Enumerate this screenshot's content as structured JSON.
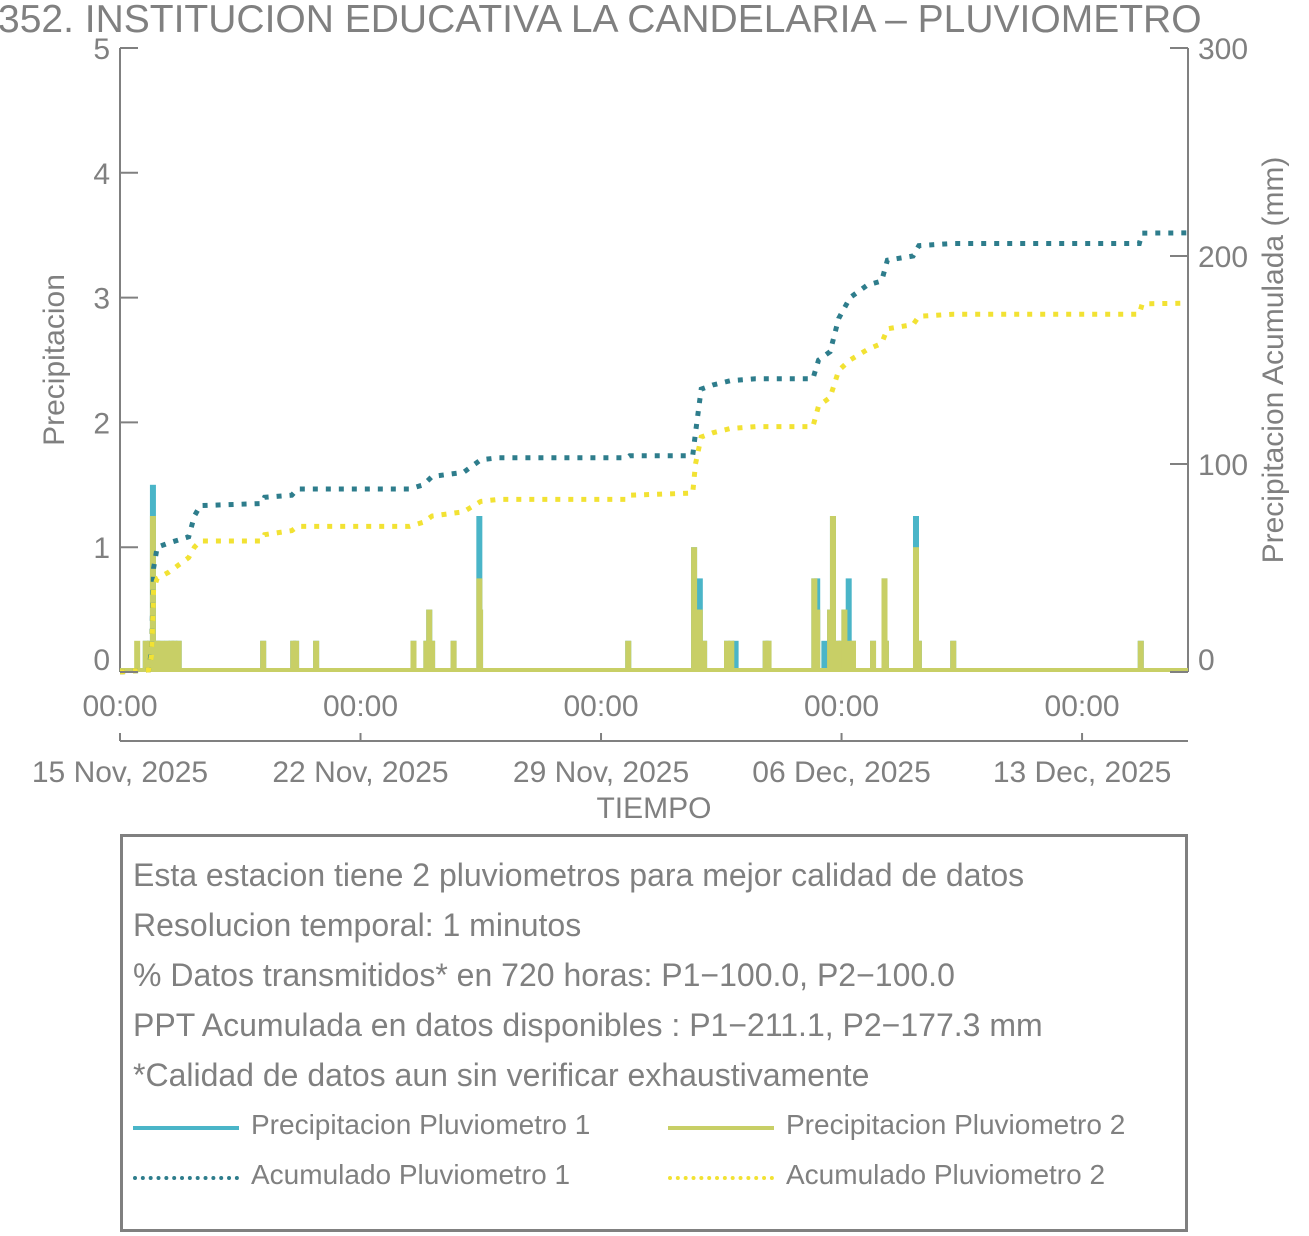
{
  "chart_data": {
    "type": "bar+line",
    "title": "352. INSTITUCION EDUCATIVA LA CANDELARIA – PLUVIOMETRO",
    "xlabel": "TIEMPO",
    "ylabel_left": "Precipitacion",
    "ylabel_right": "Precipitacion Acumulada (mm)",
    "ylim_left": [
      0,
      5
    ],
    "ylim_right": [
      0,
      300
    ],
    "yticks_left": [
      "0",
      "1",
      "2",
      "3",
      "4",
      "5"
    ],
    "yticks_right": [
      "0",
      "100",
      "200",
      "300"
    ],
    "x_range": [
      "2025-11-15T00:00",
      "2025-12-16T02:00"
    ],
    "x_ticks": [
      {
        "date": "2025-11-15",
        "time": "00:00",
        "label": "15 Nov, 2025"
      },
      {
        "date": "2025-11-22",
        "time": "00:00",
        "label": "22 Nov, 2025"
      },
      {
        "date": "2025-11-29",
        "time": "00:00",
        "label": "29 Nov, 2025"
      },
      {
        "date": "2025-12-06",
        "time": "00:00",
        "label": "06 Dec, 2025"
      },
      {
        "date": "2025-12-13",
        "time": "00:00",
        "label": "13 Dec, 2025"
      }
    ],
    "series": [
      {
        "name": "Precipitacion Pluviometro 1",
        "kind": "bar",
        "axis": "left",
        "color": "#4ab5c8",
        "points": [
          [
            "2025-11-15T18:00",
            0.25
          ],
          [
            "2025-11-15T21:00",
            0.25
          ],
          [
            "2025-11-15T23:00",
            1.5
          ],
          [
            "2025-11-16T01:00",
            0.25
          ],
          [
            "2025-11-16T02:00",
            0.25
          ],
          [
            "2025-11-16T05:00",
            0.25
          ],
          [
            "2025-11-16T09:00",
            0.25
          ],
          [
            "2025-11-16T12:00",
            0.25
          ],
          [
            "2025-11-16T14:00",
            0.25
          ],
          [
            "2025-11-16T17:00",
            0.25
          ],
          [
            "2025-11-19T04:00",
            0.25
          ],
          [
            "2025-11-20T01:00",
            0.25
          ],
          [
            "2025-11-20T03:00",
            0.25
          ],
          [
            "2025-11-20T17:00",
            0.25
          ],
          [
            "2025-11-23T13:00",
            0.25
          ],
          [
            "2025-11-23T22:00",
            0.25
          ],
          [
            "2025-11-24T00:00",
            0.5
          ],
          [
            "2025-11-24T02:00",
            0.25
          ],
          [
            "2025-11-24T17:00",
            0.25
          ],
          [
            "2025-11-25T11:00",
            1.25
          ],
          [
            "2025-11-25T11:30",
            0.5
          ],
          [
            "2025-11-29T19:00",
            0.25
          ],
          [
            "2025-12-01T17:00",
            1.0
          ],
          [
            "2025-12-01T19:00",
            0.5
          ],
          [
            "2025-12-01T21:00",
            0.75
          ],
          [
            "2025-12-02T00:00",
            0.25
          ],
          [
            "2025-12-02T16:00",
            0.25
          ],
          [
            "2025-12-02T19:00",
            0.25
          ],
          [
            "2025-12-02T22:00",
            0.25
          ],
          [
            "2025-12-03T19:00",
            0.25
          ],
          [
            "2025-12-03T21:00",
            0.25
          ],
          [
            "2025-12-05T05:00",
            0.75
          ],
          [
            "2025-12-05T07:00",
            0.75
          ],
          [
            "2025-12-05T12:00",
            0.25
          ],
          [
            "2025-12-05T16:00",
            0.5
          ],
          [
            "2025-12-05T18:00",
            1.25
          ],
          [
            "2025-12-05T21:00",
            0.25
          ],
          [
            "2025-12-06T00:00",
            0.25
          ],
          [
            "2025-12-06T02:00",
            0.5
          ],
          [
            "2025-12-06T05:00",
            0.75
          ],
          [
            "2025-12-06T08:00",
            0.25
          ],
          [
            "2025-12-06T22:00",
            0.25
          ],
          [
            "2025-12-07T06:00",
            0.75
          ],
          [
            "2025-12-07T07:00",
            0.25
          ],
          [
            "2025-12-08T04:00",
            1.25
          ],
          [
            "2025-12-08T06:00",
            0.25
          ],
          [
            "2025-12-09T06:00",
            0.25
          ],
          [
            "2025-12-14T17:00",
            0.25
          ]
        ]
      },
      {
        "name": "Precipitacion Pluviometro 2",
        "kind": "bar",
        "axis": "left",
        "color": "#c8cf66",
        "points": [
          [
            "2025-11-15T12:00",
            0.25
          ],
          [
            "2025-11-15T18:00",
            0.25
          ],
          [
            "2025-11-15T21:00",
            0.25
          ],
          [
            "2025-11-15T23:00",
            1.25
          ],
          [
            "2025-11-16T01:00",
            0.25
          ],
          [
            "2025-11-16T02:00",
            0.25
          ],
          [
            "2025-11-16T05:00",
            0.25
          ],
          [
            "2025-11-16T09:00",
            0.25
          ],
          [
            "2025-11-16T12:00",
            0.25
          ],
          [
            "2025-11-16T14:00",
            0.25
          ],
          [
            "2025-11-16T17:00",
            0.25
          ],
          [
            "2025-11-19T04:00",
            0.25
          ],
          [
            "2025-11-20T01:00",
            0.25
          ],
          [
            "2025-11-20T03:00",
            0.25
          ],
          [
            "2025-11-20T17:00",
            0.25
          ],
          [
            "2025-11-23T13:00",
            0.25
          ],
          [
            "2025-11-23T22:00",
            0.25
          ],
          [
            "2025-11-24T00:00",
            0.5
          ],
          [
            "2025-11-24T02:00",
            0.25
          ],
          [
            "2025-11-24T17:00",
            0.25
          ],
          [
            "2025-11-25T11:00",
            0.75
          ],
          [
            "2025-11-25T11:30",
            0.5
          ],
          [
            "2025-11-29T19:00",
            0.25
          ],
          [
            "2025-12-01T17:00",
            1.0
          ],
          [
            "2025-12-01T19:00",
            0.5
          ],
          [
            "2025-12-01T21:00",
            0.5
          ],
          [
            "2025-12-02T00:00",
            0.25
          ],
          [
            "2025-12-02T16:00",
            0.25
          ],
          [
            "2025-12-02T19:00",
            0.25
          ],
          [
            "2025-12-03T19:00",
            0.25
          ],
          [
            "2025-12-03T21:00",
            0.25
          ],
          [
            "2025-12-05T05:00",
            0.75
          ],
          [
            "2025-12-05T07:00",
            0.5
          ],
          [
            "2025-12-05T16:00",
            0.5
          ],
          [
            "2025-12-05T18:00",
            1.25
          ],
          [
            "2025-12-05T21:00",
            0.25
          ],
          [
            "2025-12-06T00:00",
            0.25
          ],
          [
            "2025-12-06T02:00",
            0.5
          ],
          [
            "2025-12-06T05:00",
            0.25
          ],
          [
            "2025-12-06T08:00",
            0.25
          ],
          [
            "2025-12-06T22:00",
            0.25
          ],
          [
            "2025-12-07T06:00",
            0.75
          ],
          [
            "2025-12-07T07:00",
            0.25
          ],
          [
            "2025-12-08T04:00",
            1.0
          ],
          [
            "2025-12-08T06:00",
            0.25
          ],
          [
            "2025-12-09T06:00",
            0.25
          ],
          [
            "2025-12-14T17:00",
            0.25
          ]
        ]
      },
      {
        "name": "Acumulado Pluviometro 1",
        "kind": "line",
        "style": "dotted",
        "axis": "right",
        "color": "#2e7d8c",
        "points": [
          [
            "2025-11-15T00:00",
            0
          ],
          [
            "2025-11-15T20:00",
            1
          ],
          [
            "2025-11-15T22:00",
            10
          ],
          [
            "2025-11-15T23:30",
            50
          ],
          [
            "2025-11-16T02:00",
            60
          ],
          [
            "2025-11-16T10:00",
            62
          ],
          [
            "2025-11-17T00:00",
            65
          ],
          [
            "2025-11-17T04:00",
            75
          ],
          [
            "2025-11-17T08:00",
            80
          ],
          [
            "2025-11-19T03:00",
            81
          ],
          [
            "2025-11-19T05:00",
            84
          ],
          [
            "2025-11-20T00:00",
            85
          ],
          [
            "2025-11-20T04:00",
            88
          ],
          [
            "2025-11-23T10:00",
            88
          ],
          [
            "2025-11-23T20:00",
            90
          ],
          [
            "2025-11-24T02:00",
            94
          ],
          [
            "2025-11-25T00:00",
            96
          ],
          [
            "2025-11-25T12:00",
            102
          ],
          [
            "2025-11-26T00:00",
            103
          ],
          [
            "2025-11-29T18:00",
            103
          ],
          [
            "2025-11-29T20:00",
            104
          ],
          [
            "2025-12-01T16:00",
            104
          ],
          [
            "2025-12-01T18:00",
            115
          ],
          [
            "2025-12-01T22:00",
            136
          ],
          [
            "2025-12-02T06:00",
            138
          ],
          [
            "2025-12-02T18:00",
            140
          ],
          [
            "2025-12-03T12:00",
            141
          ],
          [
            "2025-12-05T04:00",
            141
          ],
          [
            "2025-12-05T08:00",
            150
          ],
          [
            "2025-12-05T16:00",
            154
          ],
          [
            "2025-12-05T22:00",
            170
          ],
          [
            "2025-12-06T06:00",
            180
          ],
          [
            "2025-12-06T18:00",
            186
          ],
          [
            "2025-12-07T04:00",
            188
          ],
          [
            "2025-12-07T08:00",
            198
          ],
          [
            "2025-12-08T02:00",
            200
          ],
          [
            "2025-12-08T06:00",
            205
          ],
          [
            "2025-12-09T06:00",
            206
          ],
          [
            "2025-12-14T16:00",
            206
          ],
          [
            "2025-12-14T18:00",
            211
          ],
          [
            "2025-12-16T02:00",
            211.1
          ]
        ]
      },
      {
        "name": "Acumulado Pluviometro 2",
        "kind": "line",
        "style": "dotted",
        "axis": "right",
        "color": "#f2e233",
        "points": [
          [
            "2025-11-15T00:00",
            0
          ],
          [
            "2025-11-15T20:00",
            1
          ],
          [
            "2025-11-15T22:00",
            8
          ],
          [
            "2025-11-15T23:30",
            40
          ],
          [
            "2025-11-16T02:00",
            45
          ],
          [
            "2025-11-16T10:00",
            48
          ],
          [
            "2025-11-17T00:00",
            55
          ],
          [
            "2025-11-17T04:00",
            60
          ],
          [
            "2025-11-17T08:00",
            63
          ],
          [
            "2025-11-19T03:00",
            63
          ],
          [
            "2025-11-19T05:00",
            66
          ],
          [
            "2025-11-20T00:00",
            68
          ],
          [
            "2025-11-20T04:00",
            70
          ],
          [
            "2025-11-23T10:00",
            70
          ],
          [
            "2025-11-23T20:00",
            72
          ],
          [
            "2025-11-24T02:00",
            75
          ],
          [
            "2025-11-25T00:00",
            77
          ],
          [
            "2025-11-25T12:00",
            82
          ],
          [
            "2025-11-26T00:00",
            83
          ],
          [
            "2025-11-29T18:00",
            83
          ],
          [
            "2025-11-29T20:00",
            85
          ],
          [
            "2025-12-01T16:00",
            86
          ],
          [
            "2025-12-01T18:00",
            100
          ],
          [
            "2025-12-01T22:00",
            113
          ],
          [
            "2025-12-02T06:00",
            115
          ],
          [
            "2025-12-02T18:00",
            117
          ],
          [
            "2025-12-03T12:00",
            118
          ],
          [
            "2025-12-05T04:00",
            118
          ],
          [
            "2025-12-05T08:00",
            128
          ],
          [
            "2025-12-05T16:00",
            132
          ],
          [
            "2025-12-05T22:00",
            145
          ],
          [
            "2025-12-06T06:00",
            150
          ],
          [
            "2025-12-06T18:00",
            155
          ],
          [
            "2025-12-07T04:00",
            158
          ],
          [
            "2025-12-07T08:00",
            165
          ],
          [
            "2025-12-08T02:00",
            167
          ],
          [
            "2025-12-08T06:00",
            171
          ],
          [
            "2025-12-09T06:00",
            172
          ],
          [
            "2025-12-14T16:00",
            172
          ],
          [
            "2025-12-14T18:00",
            177
          ],
          [
            "2025-12-16T02:00",
            177.3
          ]
        ]
      }
    ],
    "grid": false,
    "legend_position": "bottom"
  },
  "info": {
    "lines": [
      "Esta estacion tiene 2 pluviometros para mejor calidad de datos",
      "Resolucion temporal: 1 minutos",
      "% Datos transmitidos* en 720 horas: P1−100.0, P2−100.0",
      "PPT Acumulada en datos disponibles : P1−211.1, P2−177.3 mm",
      "*Calidad de datos aun sin verificar exhaustivamente"
    ],
    "legend": [
      {
        "label": "Precipitacion Pluviometro 1",
        "color": "#4ab5c8",
        "style": "solid"
      },
      {
        "label": "Precipitacion Pluviometro 2",
        "color": "#c8cf66",
        "style": "solid"
      },
      {
        "label": "Acumulado Pluviometro 1",
        "color": "#2e7d8c",
        "style": "dotted"
      },
      {
        "label": "Acumulado Pluviometro 2",
        "color": "#f2e233",
        "style": "dotted"
      }
    ]
  }
}
